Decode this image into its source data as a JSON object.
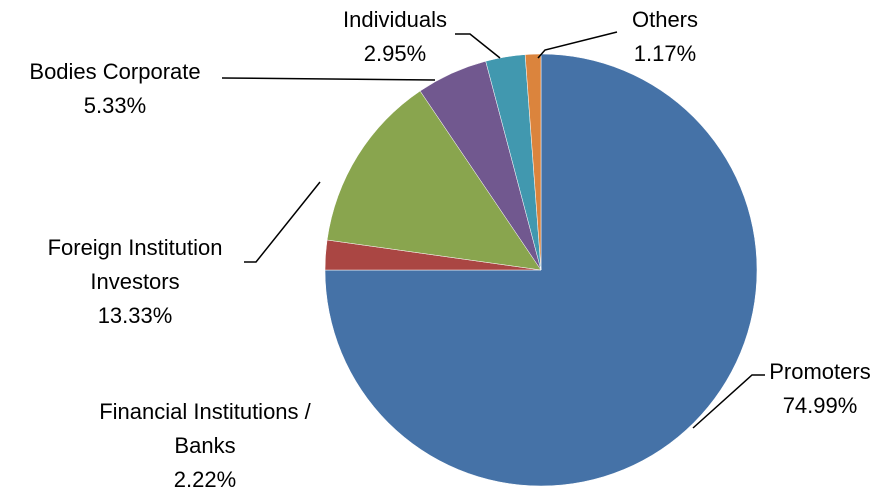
{
  "chart_data": {
    "type": "pie",
    "categories": [
      "Promoters",
      "Financial Institutions / Banks",
      "Foreign Institution Investors",
      "Bodies Corporate",
      "Individuals",
      "Others"
    ],
    "values": [
      74.99,
      2.22,
      13.33,
      5.33,
      2.95,
      1.17
    ],
    "value_labels": [
      "74.99%",
      "2.22%",
      "13.33%",
      "5.33%",
      "2.95%",
      "1.17%"
    ],
    "colors": [
      "#4572a7",
      "#aa4643",
      "#89a54e",
      "#71588f",
      "#4198af",
      "#db843d"
    ]
  }
}
